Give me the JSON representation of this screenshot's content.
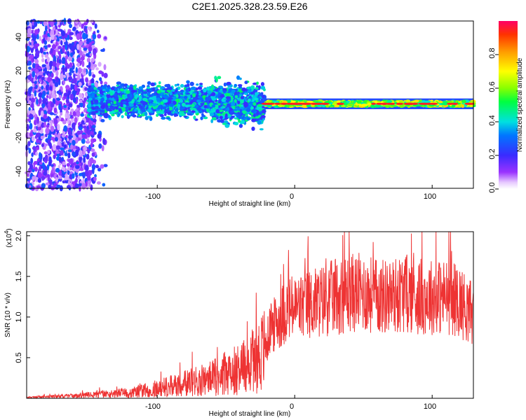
{
  "title": "C2E1.2025.328.23.59.E26",
  "chart_data": [
    {
      "type": "heatmap",
      "xlabel": "Height of straight line (km)",
      "ylabel": "Frequency (Hz)",
      "xlim": [
        -195,
        130
      ],
      "ylim": [
        -50,
        50
      ],
      "xticks": [
        -100,
        0,
        100
      ],
      "xtick_labels": [
        "-100",
        "0",
        "100"
      ],
      "yticks": [
        -40,
        -20,
        0,
        20,
        40
      ],
      "ytick_labels": [
        "-40",
        "-20",
        "0",
        "20",
        "40"
      ],
      "colorbar": {
        "label": "Normalized spectral amplitude",
        "range": [
          0,
          1
        ],
        "ticks": [
          0.0,
          0.2,
          0.4,
          0.6,
          0.8
        ],
        "tick_labels": [
          "0.0",
          "0.2",
          "0.4",
          "0.6",
          "0.8"
        ],
        "colormap": "rainbow (white-violet-blue-cyan-green-yellow-red)"
      },
      "regions": [
        {
          "name": "scattered noise",
          "x_range": [
            -195,
            -145
          ],
          "freq_range": [
            -50,
            50
          ],
          "amplitude_range": [
            0.05,
            0.3
          ]
        },
        {
          "name": "broad band",
          "x_range": [
            -150,
            -22
          ],
          "freq_center": 2,
          "freq_halfwidth": 7,
          "amplitude_range": [
            0.2,
            0.5
          ]
        },
        {
          "name": "narrow line",
          "x_range": [
            -22,
            130
          ],
          "freq_center": 0.5,
          "freq_halfwidth": 2,
          "amplitude_range": [
            0.4,
            1.0
          ]
        }
      ]
    },
    {
      "type": "line",
      "xlabel": "Height of straight line (km)",
      "ylabel": "SNR (10 * v/v)",
      "y_multiplier": "(x10",
      "y_multiplier_exp": "4",
      "y_multiplier_close": ")",
      "xlim": [
        -195,
        130
      ],
      "ylim": [
        0,
        2.05
      ],
      "xticks": [
        -100,
        0,
        100
      ],
      "xtick_labels": [
        "-100",
        "0",
        "100"
      ],
      "yticks": [
        0.5,
        1.0,
        1.5,
        2.0
      ],
      "ytick_labels": [
        "0.5",
        "1.0",
        "1.5",
        "2.0"
      ],
      "line_color": "#ee3333",
      "series": [
        {
          "name": "SNR",
          "x": [
            -195,
            -180,
            -160,
            -150,
            -140,
            -120,
            -100,
            -80,
            -60,
            -45,
            -35,
            -30,
            -25,
            -22,
            -20,
            -18,
            -15,
            -12,
            -10,
            -8,
            -5,
            0,
            10,
            20,
            30,
            40,
            50,
            60,
            70,
            80,
            90,
            100,
            110,
            120,
            125,
            130
          ],
          "y": [
            0.01,
            0.02,
            0.03,
            0.04,
            0.05,
            0.07,
            0.12,
            0.18,
            0.25,
            0.33,
            0.42,
            0.5,
            0.55,
            0.6,
            0.7,
            0.85,
            0.9,
            0.95,
            1.0,
            1.05,
            1.1,
            1.1,
            1.15,
            1.2,
            1.25,
            1.3,
            1.3,
            1.25,
            1.25,
            1.3,
            1.25,
            1.25,
            1.25,
            1.2,
            1.1,
            1.05
          ]
        }
      ]
    }
  ]
}
